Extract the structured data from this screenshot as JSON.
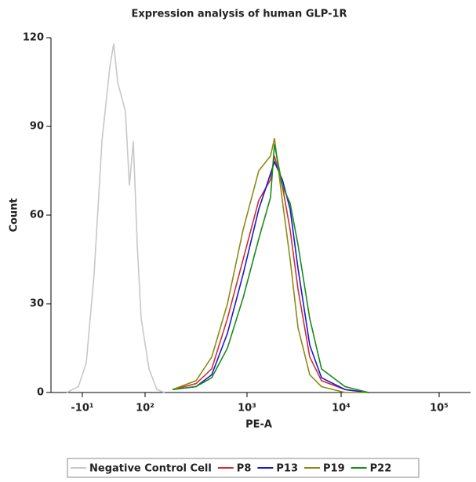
{
  "chart_data": {
    "type": "line",
    "title": "Expression analysis of human GLP-1R",
    "xlabel": "PE-A",
    "ylabel": "Count",
    "xlim": [
      1.04,
      5.32
    ],
    "ylim": [
      0,
      120
    ],
    "xticks": [
      {
        "value": 1.36,
        "label": "-10¹"
      },
      {
        "value": 2,
        "label": "10²"
      },
      {
        "value": 3.04,
        "label": "10³"
      },
      {
        "value": 4,
        "label": "10⁴"
      },
      {
        "value": 5,
        "label": "10⁵"
      }
    ],
    "yticks": [
      0,
      30,
      60,
      90,
      120
    ],
    "legend": "bottom",
    "series": [
      {
        "name": "Negative Control Cell",
        "color": "#c8c8c8",
        "x": [
          1.2,
          1.32,
          1.4,
          1.48,
          1.56,
          1.64,
          1.68,
          1.72,
          1.76,
          1.8,
          1.84,
          1.88,
          1.92,
          1.96,
          2.04,
          2.12,
          2.2
        ],
        "values": [
          0,
          2,
          10,
          40,
          85,
          110,
          118,
          105,
          100,
          95,
          70,
          85,
          50,
          25,
          8,
          1,
          0
        ]
      },
      {
        "name": "P8",
        "color": "#d03030",
        "x": [
          2.28,
          2.52,
          2.68,
          2.84,
          3.0,
          3.16,
          3.28,
          3.32,
          3.4,
          3.48,
          3.56,
          3.68,
          3.8,
          4.04,
          4.28
        ],
        "values": [
          1,
          3,
          8,
          25,
          45,
          65,
          72,
          80,
          70,
          55,
          35,
          12,
          4,
          1,
          0
        ]
      },
      {
        "name": "P13",
        "color": "#1a1ad0",
        "x": [
          2.28,
          2.52,
          2.68,
          2.84,
          3.0,
          3.16,
          3.28,
          3.32,
          3.4,
          3.48,
          3.56,
          3.68,
          3.8,
          4.04,
          4.28
        ],
        "values": [
          1,
          2,
          6,
          20,
          40,
          62,
          74,
          78,
          72,
          62,
          42,
          16,
          5,
          1,
          0
        ]
      },
      {
        "name": "P19",
        "color": "#8c8c14",
        "x": [
          2.28,
          2.52,
          2.68,
          2.84,
          3.0,
          3.16,
          3.28,
          3.32,
          3.4,
          3.48,
          3.56,
          3.68,
          3.8,
          4.04,
          4.28
        ],
        "values": [
          1,
          4,
          12,
          30,
          55,
          75,
          80,
          86,
          65,
          45,
          22,
          6,
          2,
          0,
          0
        ]
      },
      {
        "name": "P22",
        "color": "#1a8c1a",
        "x": [
          2.28,
          2.52,
          2.68,
          2.84,
          3.0,
          3.16,
          3.28,
          3.32,
          3.4,
          3.48,
          3.56,
          3.68,
          3.8,
          4.04,
          4.28
        ],
        "values": [
          1,
          2,
          5,
          15,
          32,
          52,
          66,
          84,
          70,
          64,
          50,
          25,
          8,
          2,
          0
        ]
      }
    ]
  }
}
